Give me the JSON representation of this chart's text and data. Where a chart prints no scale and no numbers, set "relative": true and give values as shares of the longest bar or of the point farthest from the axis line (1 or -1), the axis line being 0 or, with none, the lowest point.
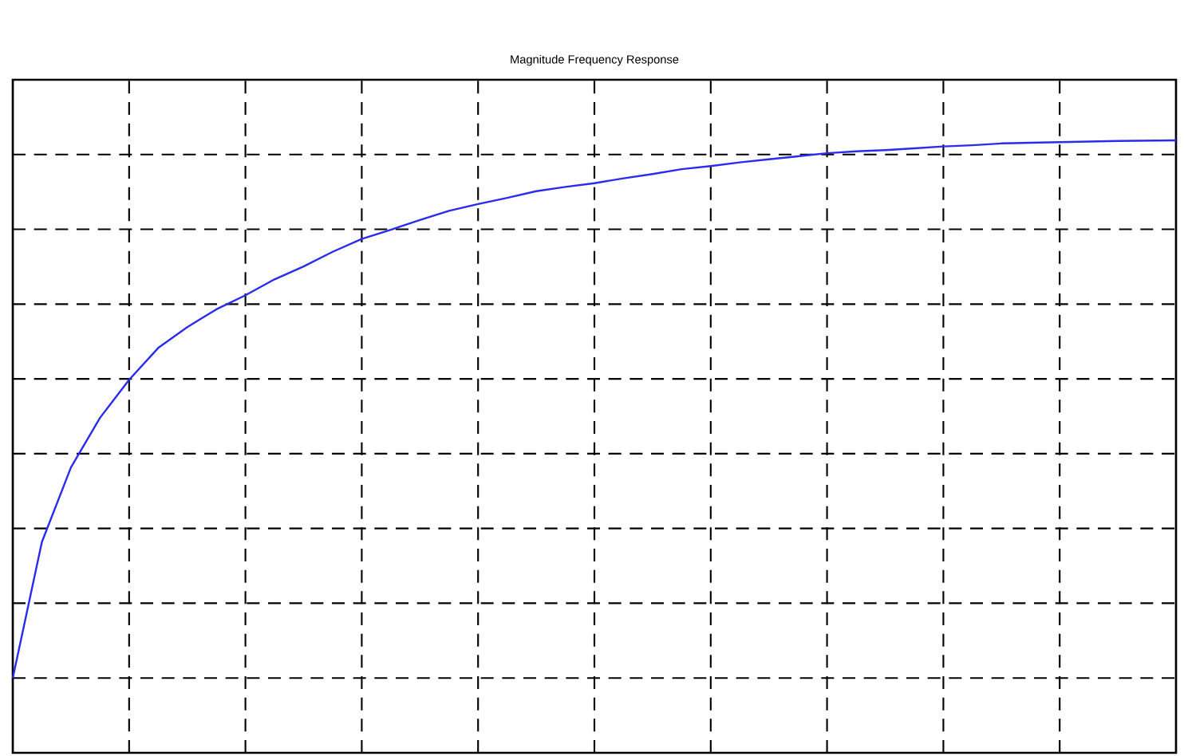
{
  "chart_data": {
    "type": "line",
    "title": "Magnitude Frequency Response",
    "relative": true,
    "grid": true,
    "line_style": "solid",
    "categories": [
      null,
      null,
      null,
      null,
      null,
      null,
      null,
      null,
      null,
      null,
      null,
      null,
      null,
      null,
      null,
      null,
      null,
      null,
      null,
      null,
      null,
      null,
      null,
      null,
      null,
      null,
      null,
      null,
      null,
      null,
      null,
      null,
      null,
      null,
      null,
      null,
      null,
      null,
      null,
      null,
      null
    ],
    "series": [
      {
        "color": "#2b2bf0",
        "values": [
          0.122,
          0.344,
          0.466,
          0.547,
          0.609,
          0.661,
          0.695,
          0.724,
          0.747,
          0.773,
          0.794,
          0.818,
          0.839,
          0.854,
          0.87,
          0.885,
          0.896,
          0.906,
          0.917,
          0.924,
          0.93,
          0.938,
          0.945,
          0.953,
          0.958,
          0.964,
          0.969,
          0.974,
          0.979,
          0.982,
          0.984,
          0.987,
          0.99,
          0.992,
          0.995,
          0.996,
          0.997,
          0.998,
          0.999,
          0.9995,
          1.0
        ]
      }
    ]
  }
}
